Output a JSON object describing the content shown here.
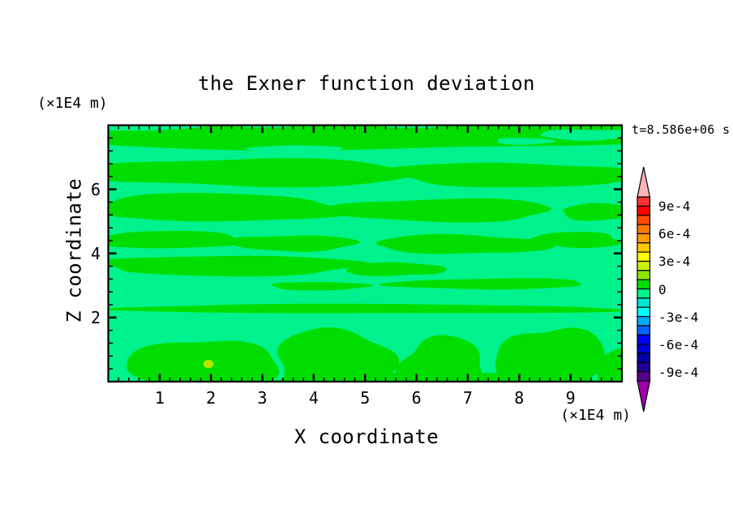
{
  "title": "the Exner function deviation",
  "time_label": "t=8.586e+06 s",
  "x_axis": {
    "title": "X coordinate",
    "unit_label": "(×1E4 m)",
    "range": [
      0,
      10
    ],
    "major_ticks": [
      1,
      2,
      3,
      4,
      5,
      6,
      7,
      8,
      9
    ],
    "minor_step": 0.2
  },
  "y_axis": {
    "title": "Z coordinate",
    "unit_label": "(×1E4 m)",
    "range": [
      0,
      8
    ],
    "major_ticks": [
      2,
      4,
      6
    ],
    "minor_step": 0.4
  },
  "colorbar": {
    "segments": [
      "#FF3232",
      "#FF0000",
      "#FF4B00",
      "#FF7800",
      "#FF9B00",
      "#FFC800",
      "#FFFF00",
      "#C8F000",
      "#8CE600",
      "#00DE00",
      "#00F28C",
      "#00E6CD",
      "#00FFFF",
      "#00AAFF",
      "#0064FF",
      "#0000FF",
      "#0000D2",
      "#0000A5",
      "#1E0096",
      "#55008C"
    ],
    "labels": [
      {
        "text": "9e-4",
        "boundary": 1
      },
      {
        "text": "6e-4",
        "boundary": 4
      },
      {
        "text": "3e-4",
        "boundary": 7
      },
      {
        "text": "0",
        "boundary": 10
      },
      {
        "text": "-3e-4",
        "boundary": 13
      },
      {
        "text": "-6e-4",
        "boundary": 16
      },
      {
        "text": "-9e-4",
        "boundary": 19
      }
    ],
    "top_arrow_color": "#FFB4B4",
    "bottom_arrow_color": "#A000A8"
  },
  "chart_data": {
    "type": "contour",
    "title": "the Exner function deviation",
    "time": "t=8.586e+06 s",
    "xlabel": "X coordinate",
    "ylabel": "Z coordinate",
    "x_unit": "(×1E4 m)",
    "z_unit": "(×1E4 m)",
    "x_range": [
      0,
      10
    ],
    "z_range": [
      0,
      8
    ],
    "contour_interval": 0.0001,
    "value_range": [
      -0.001,
      0.001
    ],
    "field_description": "Near-zero Exner deviation: wavy horizontal layers alternating between the -1e-4..0 band (spring green background) and the 0..1e-4 band (green), convective green plumes rising from the bottom boundary, and one tiny ~2e-4 spot near (1.95, 0.55).",
    "background_color": "#00F28C",
    "background_band": "-1e-4 .. 0",
    "band_color": "#00DE00",
    "band_range": "0 .. 1e-4",
    "hotspot": {
      "x": 1.95,
      "z": 0.55,
      "rx": 0.1,
      "rz": 0.13,
      "color": "#B4E600",
      "approx_value": "2e-4"
    },
    "green_regions": [
      {
        "cx": 5.0,
        "cz": 7.72,
        "rx": 5.8,
        "rz": 0.52,
        "seed": 1
      },
      {
        "cx": 2.7,
        "cz": 6.52,
        "rx": 3.2,
        "rz": 0.45,
        "seed": 2
      },
      {
        "cx": 7.9,
        "cz": 6.45,
        "rx": 2.5,
        "rz": 0.38,
        "seed": 3
      },
      {
        "cx": 2.1,
        "cz": 5.42,
        "rx": 2.6,
        "rz": 0.42,
        "seed": 4
      },
      {
        "cx": 6.5,
        "cz": 5.35,
        "rx": 2.3,
        "rz": 0.34,
        "seed": 5
      },
      {
        "cx": 9.6,
        "cz": 5.3,
        "rx": 0.8,
        "rz": 0.26,
        "seed": 6
      },
      {
        "cx": 1.1,
        "cz": 4.42,
        "rx": 1.5,
        "rz": 0.28,
        "seed": 7
      },
      {
        "cx": 3.6,
        "cz": 4.32,
        "rx": 1.2,
        "rz": 0.26,
        "seed": 8
      },
      {
        "cx": 6.9,
        "cz": 4.28,
        "rx": 1.7,
        "rz": 0.3,
        "seed": 9
      },
      {
        "cx": 9.1,
        "cz": 4.42,
        "rx": 0.9,
        "rz": 0.24,
        "seed": 10
      },
      {
        "cx": 2.4,
        "cz": 3.62,
        "rx": 2.7,
        "rz": 0.3,
        "seed": 11
      },
      {
        "cx": 5.6,
        "cz": 3.5,
        "rx": 1.0,
        "rz": 0.2,
        "seed": 12
      },
      {
        "cx": 7.4,
        "cz": 3.05,
        "rx": 1.9,
        "rz": 0.17,
        "seed": 13
      },
      {
        "cx": 4.1,
        "cz": 2.98,
        "rx": 0.9,
        "rz": 0.14,
        "seed": 14
      },
      {
        "cx": 5.0,
        "cz": 2.27,
        "rx": 4.8,
        "rz": 0.15,
        "seed": 15
      },
      {
        "cx": 1.9,
        "cz": 0.45,
        "rx": 1.5,
        "rz": 0.85,
        "seed": 16
      },
      {
        "cx": 4.4,
        "cz": 0.55,
        "rx": 1.2,
        "rz": 1.05,
        "seed": 17
      },
      {
        "cx": 6.5,
        "cz": 0.45,
        "rx": 0.85,
        "rz": 0.9,
        "seed": 18
      },
      {
        "cx": 8.6,
        "cz": 0.6,
        "rx": 1.05,
        "rz": 1.1,
        "seed": 19
      },
      {
        "cx": 10.1,
        "cz": 0.35,
        "rx": 0.6,
        "rz": 0.7,
        "seed": 20
      },
      {
        "cx": 6.4,
        "cz": -0.15,
        "rx": 3.5,
        "rz": 0.45,
        "seed": 21
      }
    ],
    "overlay_patches": [
      {
        "cx": 0.65,
        "cz": 7.97,
        "rx": 1.15,
        "rz": 0.14,
        "seed": 31
      },
      {
        "cx": 3.05,
        "cz": 8.02,
        "rx": 0.6,
        "rz": 0.1,
        "seed": 32
      },
      {
        "cx": 9.35,
        "cz": 7.7,
        "rx": 0.9,
        "rz": 0.18,
        "seed": 33
      },
      {
        "cx": 5.9,
        "cz": 8.0,
        "rx": 0.55,
        "rz": 0.09,
        "seed": 34
      },
      {
        "cx": 3.7,
        "cz": 7.25,
        "rx": 0.95,
        "rz": 0.12,
        "seed": 35
      },
      {
        "cx": 8.1,
        "cz": 7.5,
        "rx": 0.6,
        "rz": 0.1,
        "seed": 36
      }
    ]
  }
}
